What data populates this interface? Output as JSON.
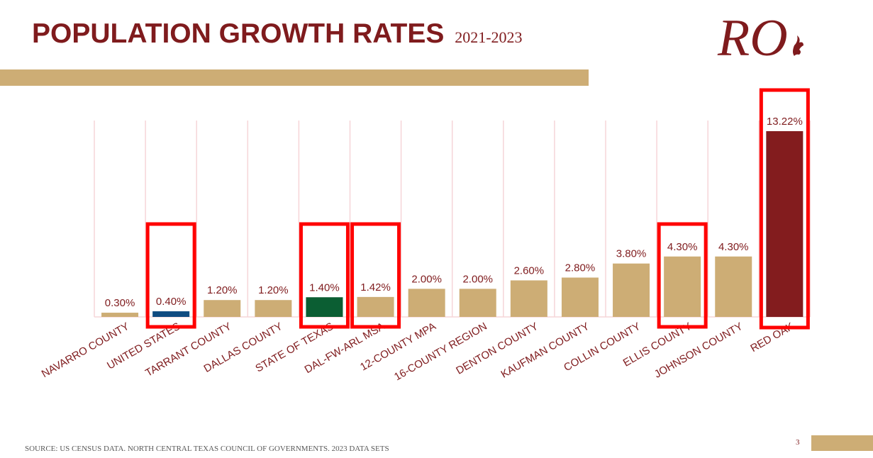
{
  "header": {
    "title": "POPULATION GROWTH RATES",
    "years": "2021-2023",
    "logo_text": "RO"
  },
  "footer": {
    "source": "SOURCE: US CENSUS DATA. NORTH CENTRAL TEXAS COUNCIL OF GOVERNMENTS. 2023 DATA SETS",
    "page_number": "3"
  },
  "colors": {
    "brand_maroon": "#7f1b1d",
    "gold": "#cdad75",
    "us_blue": "#0f4c81",
    "texas_green": "#0b5e33",
    "red_oak": "#831c1e",
    "highlight": "#ff0000",
    "gridline": "#f6d5d8"
  },
  "chart_data": {
    "type": "bar",
    "title": "POPULATION GROWTH RATES 2021-2023",
    "xlabel": "",
    "ylabel": "",
    "ylim": [
      0,
      13.22
    ],
    "grid": "vertical separators",
    "categories": [
      "NAVARRO COUNTY",
      "UNITED STATES",
      "TARRANT COUNTY",
      "DALLAS COUNTY",
      "STATE OF TEXAS",
      "DAL-FW-ARL MSA",
      "12-COUNTY MPA",
      "16-COUNTY REGION",
      "DENTON COUNTY",
      "KAUFMAN COUNTY",
      "COLLIN COUNTY",
      "ELLIS COUNTY",
      "JOHNSON COUNTY",
      "RED OAK"
    ],
    "values": [
      0.3,
      0.4,
      1.2,
      1.2,
      1.4,
      1.42,
      2.0,
      2.0,
      2.6,
      2.8,
      3.8,
      4.3,
      4.3,
      13.22
    ],
    "labels": [
      "0.30%",
      "0.40%",
      "1.20%",
      "1.20%",
      "1.40%",
      "1.42%",
      "2.00%",
      "2.00%",
      "2.60%",
      "2.80%",
      "3.80%",
      "4.30%",
      "4.30%",
      "13.22%"
    ],
    "bar_colors": [
      "gold",
      "us_blue",
      "gold",
      "gold",
      "texas_green",
      "gold",
      "gold",
      "gold",
      "gold",
      "gold",
      "gold",
      "gold",
      "gold",
      "red_oak"
    ],
    "highlighted": [
      "UNITED STATES",
      "STATE OF TEXAS",
      "DAL-FW-ARL MSA",
      "ELLIS COUNTY",
      "RED OAK"
    ]
  }
}
